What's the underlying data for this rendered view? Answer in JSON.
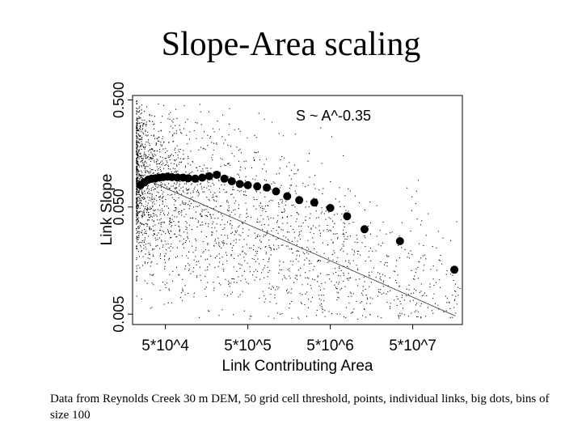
{
  "slide": {
    "title": "Slope-Area scaling",
    "caption": "Data from Reynolds Creek 30 m DEM, 50 grid cell threshold, points, individual links, big dots, bins of size 100"
  },
  "chart_data": {
    "type": "scatter",
    "x_scale": "log",
    "y_scale": "log",
    "xlabel": "Link Contributing Area",
    "ylabel": "Link Slope",
    "annotation": "S ~ A^-0.35",
    "xlim": [
      20000,
      200000000
    ],
    "ylim": [
      0.004,
      0.55
    ],
    "x_ticks": [
      {
        "value": 50000,
        "label": "5*10^4"
      },
      {
        "value": 500000,
        "label": "5*10^5"
      },
      {
        "value": 5000000,
        "label": "5*10^6"
      },
      {
        "value": 50000000,
        "label": "5*10^7"
      }
    ],
    "y_ticks": [
      {
        "value": 0.005,
        "label": "0.005"
      },
      {
        "value": 0.05,
        "label": "0.050"
      },
      {
        "value": 0.5,
        "label": "0.500"
      }
    ],
    "fit_line": {
      "exponent": -0.35,
      "x": [
        25000,
        165000000
      ],
      "y": [
        0.095,
        0.0048
      ]
    },
    "binned_means": {
      "x": [
        25000,
        28000,
        31000,
        34000,
        38000,
        42000,
        47000,
        53000,
        60000,
        70000,
        82000,
        95000,
        115000,
        140000,
        170000,
        210000,
        260000,
        320000,
        400000,
        500000,
        650000,
        850000,
        1100000,
        1500000,
        2100000,
        3200000,
        5000000,
        8000000,
        13000000,
        35000000,
        160000000
      ],
      "y": [
        0.08,
        0.085,
        0.09,
        0.092,
        0.093,
        0.094,
        0.095,
        0.096,
        0.095,
        0.094,
        0.094,
        0.093,
        0.092,
        0.094,
        0.097,
        0.1,
        0.092,
        0.087,
        0.082,
        0.08,
        0.078,
        0.076,
        0.07,
        0.063,
        0.058,
        0.055,
        0.049,
        0.041,
        0.031,
        0.024,
        0.013
      ]
    },
    "scatter_points": {
      "count": 2600,
      "x_range": [
        22000,
        190000000
      ],
      "y_range": [
        0.0045,
        0.5
      ]
    },
    "grid": false,
    "legend": "none"
  }
}
